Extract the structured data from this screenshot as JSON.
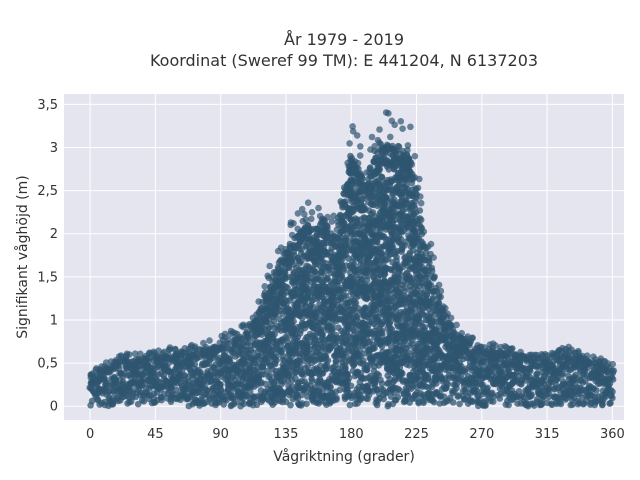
{
  "chart_data": {
    "type": "scatter",
    "title_line1": "År 1979 - 2019",
    "title_line2": "Koordinat (Sweref 99 TM): E 441204, N 6137203",
    "xlabel": "Vågriktning (grader)",
    "ylabel": "Signifikant våghöjd (m)",
    "xlim": [
      -18,
      368
    ],
    "ylim": [
      -0.16,
      3.62
    ],
    "x_ticks": [
      0,
      45,
      90,
      135,
      180,
      225,
      270,
      315,
      360
    ],
    "x_tick_labels": [
      "0",
      "45",
      "90",
      "135",
      "180",
      "225",
      "270",
      "315",
      "360"
    ],
    "y_ticks": [
      0,
      0.5,
      1,
      1.5,
      2,
      2.5,
      3,
      3.5
    ],
    "y_tick_labels": [
      "0",
      "0,5",
      "1",
      "1,5",
      "2",
      "2,5",
      "3",
      "3,5"
    ],
    "grid": true,
    "marker_color": "#2f5570",
    "plot_background": "#e5e5f0",
    "upper_envelope": {
      "direction_deg": [
        0,
        20,
        45,
        60,
        80,
        95,
        110,
        120,
        130,
        135,
        140,
        150,
        155,
        160,
        170,
        175,
        180,
        190,
        200,
        210,
        215,
        220,
        225,
        230,
        240,
        250,
        260,
        270,
        290,
        310,
        330,
        345,
        360
      ],
      "max_height_m": [
        0.4,
        0.6,
        0.65,
        0.7,
        0.75,
        0.85,
        1.0,
        1.45,
        1.9,
        2.05,
        2.2,
        2.4,
        2.3,
        2.5,
        2.2,
        2.8,
        3.3,
        3.0,
        3.45,
        3.5,
        3.4,
        3.3,
        2.9,
        2.2,
        1.5,
        1.0,
        0.85,
        0.75,
        0.7,
        0.6,
        0.7,
        0.6,
        0.5
      ]
    }
  }
}
